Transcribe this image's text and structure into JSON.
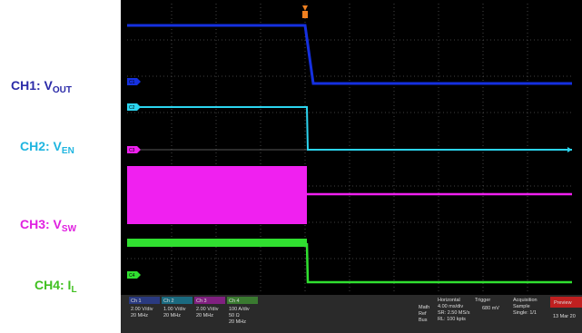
{
  "labels": [
    {
      "prefix": "CH1: V",
      "sub": "OUT"
    },
    {
      "prefix": "CH2: V",
      "sub": "EN"
    },
    {
      "prefix": "CH3: V",
      "sub": "SW"
    },
    {
      "prefix": "CH4: I",
      "sub": "L"
    }
  ],
  "markers": [
    "C1",
    "C2",
    "C3",
    "C4"
  ],
  "status": {
    "channels": [
      {
        "name": "Ch 1",
        "lines": [
          "2.00 V/div",
          "20 MHz"
        ]
      },
      {
        "name": "Ch 2",
        "lines": [
          "1.00 V/div",
          "20 MHz"
        ]
      },
      {
        "name": "Ch 3",
        "lines": [
          "2.00 V/div",
          "20 MHz"
        ]
      },
      {
        "name": "Ch 4",
        "lines": [
          "100 A/div",
          "50 Ω",
          "20 MHz"
        ]
      }
    ],
    "math": [
      "Math",
      "Ref",
      "Bus"
    ],
    "horizontal": [
      "Horizontal",
      "4.00 ms/div",
      "SR: 2.50 MS/s",
      "RL: 100 kpts"
    ],
    "trigger": [
      "Trigger",
      "680 mV"
    ],
    "acquisition": [
      "Acquisition",
      "Sample",
      "Single: 1/1"
    ],
    "preview": "Preview",
    "date": "13 Mar 20"
  }
}
